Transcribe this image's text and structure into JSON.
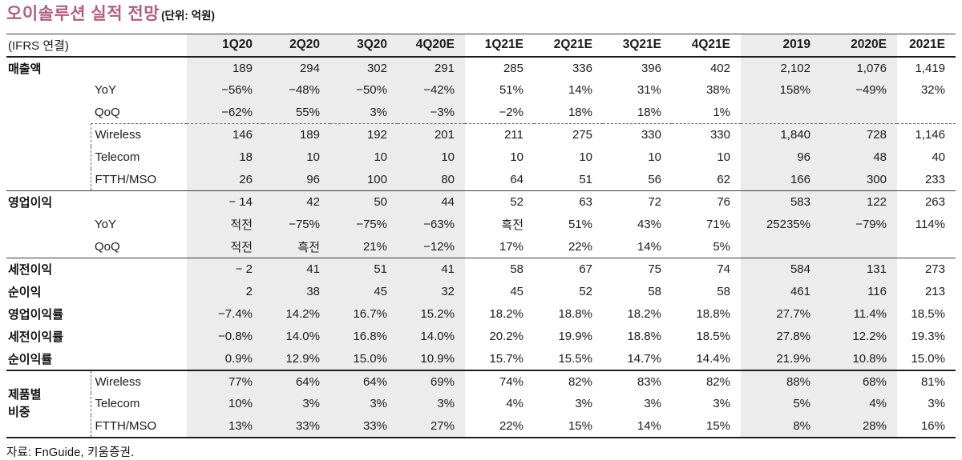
{
  "title": {
    "text": "오이솔루션 실적 전망",
    "unit": "(단위: 억원)",
    "accent_color": "#b25e7e"
  },
  "footer": {
    "source": "자료: FnGuide, 키움증권."
  },
  "colors": {
    "accent": "#b25e7e",
    "band": "#ececec",
    "rule": "#1e1e1e"
  },
  "table": {
    "corner_label": "(IFRS 연결)",
    "columns": [
      "1Q20",
      "2Q20",
      "3Q20",
      "4Q20E",
      "1Q21E",
      "2Q21E",
      "3Q21E",
      "4Q21E",
      "2019",
      "2020E",
      "2021E"
    ],
    "band_columns": [
      0,
      1,
      2,
      3,
      8,
      9
    ],
    "rows": [
      {
        "id": "sales",
        "type": "section",
        "label": "매출액",
        "values": [
          "189",
          "294",
          "302",
          "291",
          "285",
          "336",
          "396",
          "402",
          "2,102",
          "1,076",
          "1,419"
        ]
      },
      {
        "id": "sales-yoy",
        "type": "sub",
        "label": "YoY",
        "values": [
          "−56%",
          "−48%",
          "−50%",
          "−42%",
          "51%",
          "14%",
          "31%",
          "38%",
          "158%",
          "−49%",
          "32%"
        ]
      },
      {
        "id": "sales-qoq",
        "type": "sub",
        "label": "QoQ",
        "values": [
          "−62%",
          "55%",
          "3%",
          "−3%",
          "−2%",
          "18%",
          "18%",
          "1%",
          "",
          "",
          ""
        ]
      },
      {
        "id": "sales-wireless",
        "type": "sub",
        "label": "Wireless",
        "border_top": "dashed",
        "dash_left": true,
        "values": [
          "146",
          "189",
          "192",
          "201",
          "211",
          "275",
          "330",
          "330",
          "1,840",
          "728",
          "1,146"
        ]
      },
      {
        "id": "sales-telecom",
        "type": "sub",
        "label": "Telecom",
        "dash_left": true,
        "values": [
          "18",
          "10",
          "10",
          "10",
          "10",
          "10",
          "10",
          "10",
          "96",
          "48",
          "40"
        ]
      },
      {
        "id": "sales-ftth",
        "type": "sub",
        "label": "FTTH/MSO",
        "dash_left": true,
        "values": [
          "26",
          "96",
          "100",
          "80",
          "64",
          "51",
          "56",
          "62",
          "166",
          "300",
          "233"
        ]
      },
      {
        "id": "op-profit",
        "type": "section",
        "label": "영업이익",
        "border_top": "solid",
        "values": [
          "− 14",
          "42",
          "50",
          "44",
          "52",
          "63",
          "72",
          "76",
          "583",
          "122",
          "263"
        ]
      },
      {
        "id": "op-yoy",
        "type": "sub",
        "label": "YoY",
        "values": [
          "적전",
          "−75%",
          "−75%",
          "−63%",
          "흑전",
          "51%",
          "43%",
          "71%",
          "25235%",
          "−79%",
          "114%"
        ]
      },
      {
        "id": "op-qoq",
        "type": "sub",
        "label": "QoQ",
        "values": [
          "적전",
          "흑전",
          "21%",
          "−12%",
          "17%",
          "22%",
          "14%",
          "5%",
          "",
          "",
          ""
        ]
      },
      {
        "id": "pretax-profit",
        "type": "section",
        "label": "세전이익",
        "border_top": "solid",
        "values": [
          "− 2",
          "41",
          "51",
          "41",
          "58",
          "67",
          "75",
          "74",
          "584",
          "131",
          "273"
        ]
      },
      {
        "id": "net-profit",
        "type": "section",
        "label": "순이익",
        "values": [
          "2",
          "38",
          "45",
          "32",
          "45",
          "52",
          "58",
          "58",
          "461",
          "116",
          "213"
        ]
      },
      {
        "id": "op-margin",
        "type": "section",
        "label": "영업이익률",
        "values": [
          "−7.4%",
          "14.2%",
          "16.7%",
          "15.2%",
          "18.2%",
          "18.8%",
          "18.2%",
          "18.8%",
          "27.7%",
          "11.4%",
          "18.5%"
        ]
      },
      {
        "id": "pretax-margin",
        "type": "section",
        "label": "세전이익률",
        "values": [
          "−0.8%",
          "14.0%",
          "16.8%",
          "14.0%",
          "20.2%",
          "19.9%",
          "18.8%",
          "18.5%",
          "27.8%",
          "12.2%",
          "19.3%"
        ]
      },
      {
        "id": "net-margin",
        "type": "section",
        "label": "순이익률",
        "values": [
          "0.9%",
          "12.9%",
          "15.0%",
          "10.9%",
          "15.7%",
          "15.5%",
          "14.7%",
          "14.4%",
          "21.9%",
          "10.8%",
          "15.0%"
        ]
      },
      {
        "id": "mix-wireless",
        "type": "sub",
        "label": "Wireless",
        "border_top": "thick",
        "dash_left": true,
        "group": {
          "label_lines": [
            "제품별",
            "비중"
          ],
          "rowspan": 3
        },
        "values": [
          "77%",
          "64%",
          "64%",
          "69%",
          "74%",
          "82%",
          "83%",
          "82%",
          "88%",
          "68%",
          "81%"
        ]
      },
      {
        "id": "mix-telecom",
        "type": "sub",
        "label": "Telecom",
        "dash_left": true,
        "in_group": true,
        "values": [
          "10%",
          "3%",
          "3%",
          "3%",
          "4%",
          "3%",
          "3%",
          "3%",
          "5%",
          "4%",
          "3%"
        ]
      },
      {
        "id": "mix-ftth",
        "type": "sub",
        "label": "FTTH/MSO",
        "dash_left": true,
        "in_group": true,
        "values": [
          "13%",
          "33%",
          "33%",
          "27%",
          "22%",
          "15%",
          "14%",
          "15%",
          "8%",
          "28%",
          "16%"
        ]
      }
    ]
  }
}
